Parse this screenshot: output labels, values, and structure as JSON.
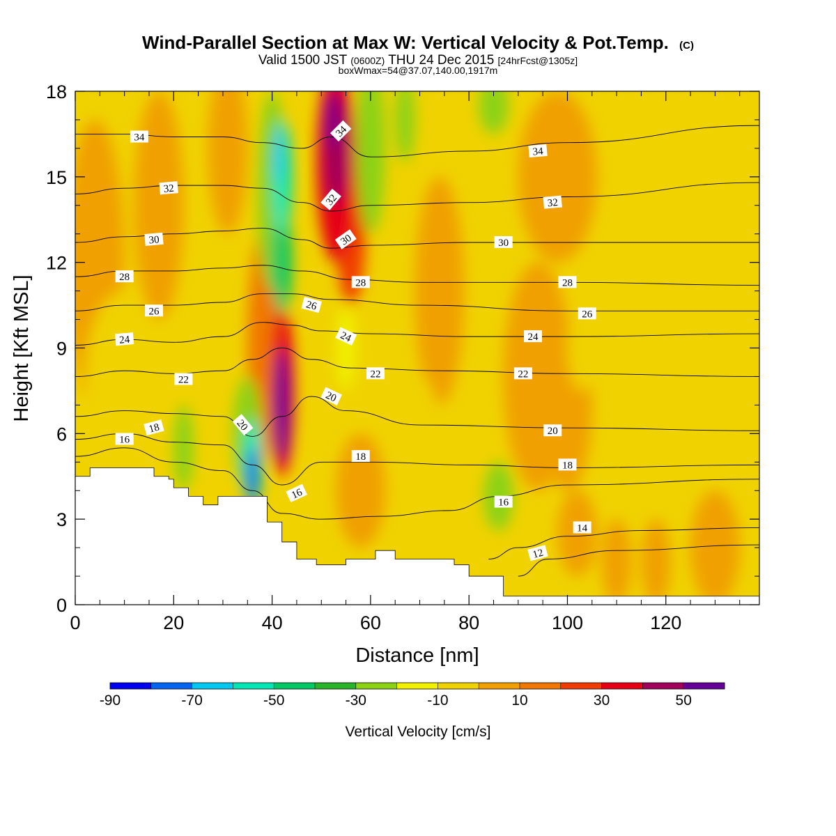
{
  "header": {
    "title_main": "Wind-Parallel Section at Max W: Vertical Velocity & Pot.Temp.",
    "title_mark": "(C)",
    "valid_prefix": "Valid 1500 JST",
    "valid_utc": "(0600Z)",
    "valid_date": "THU 24 Dec 2015",
    "forecast": "[24hrFcst@1305z]",
    "box_info": "boxWmax=54@37.07,140.00,1917m"
  },
  "chart_data": {
    "type": "heatmap",
    "xlabel": "Distance [nm]",
    "ylabel": "Height [Kft MSL]",
    "xlim": [
      0,
      139
    ],
    "ylim": [
      0,
      18
    ],
    "x_ticks": [
      "0",
      "20",
      "40",
      "60",
      "80",
      "100",
      "120"
    ],
    "y_ticks": [
      "0",
      "3",
      "6",
      "9",
      "12",
      "15",
      "18"
    ],
    "grid": false,
    "colorbar": {
      "title": "Vertical Velocity [cm/s]",
      "tick_labels": [
        "-90",
        "-70",
        "-50",
        "-30",
        "-10",
        "10",
        "30",
        "50"
      ],
      "levels": [
        -90,
        -80,
        -70,
        -60,
        -50,
        -40,
        -30,
        -20,
        -10,
        0,
        10,
        20,
        30,
        40,
        50,
        60
      ],
      "colors": [
        "#0000f0",
        "#0064f0",
        "#00c8f0",
        "#00e6b4",
        "#00c864",
        "#28b428",
        "#8cd214",
        "#f0f000",
        "#f0d200",
        "#f0a000",
        "#f07800",
        "#f03c00",
        "#e60014",
        "#a0005a",
        "#640096"
      ]
    },
    "terrain": {
      "distance": [
        0,
        3,
        3,
        16,
        16,
        19,
        19,
        20,
        20,
        23,
        23,
        26,
        26,
        29,
        29,
        39,
        39,
        42,
        42,
        45,
        45,
        49,
        49,
        55,
        55,
        61,
        61,
        65,
        65,
        77,
        77,
        80,
        80,
        87,
        87,
        90,
        90,
        139
      ],
      "height_kft": [
        4.5,
        4.5,
        4.8,
        4.8,
        4.5,
        4.5,
        4.4,
        4.4,
        4.1,
        4.1,
        3.8,
        3.8,
        3.5,
        3.5,
        3.8,
        3.8,
        2.9,
        2.9,
        2.2,
        2.2,
        1.6,
        1.6,
        1.4,
        1.4,
        1.6,
        1.6,
        1.9,
        1.9,
        1.6,
        1.6,
        1.4,
        1.4,
        1.0,
        1.0,
        0.3,
        0.3,
        0.3,
        0.3
      ]
    },
    "w_features": [
      {
        "x": 4,
        "y": 12,
        "rx": 6,
        "ry": 5,
        "w": 5
      },
      {
        "x": 17,
        "y": 14,
        "rx": 5,
        "ry": 4,
        "w": 8
      },
      {
        "x": 31,
        "y": 16,
        "rx": 4,
        "ry": 3,
        "w": 5
      },
      {
        "x": 40,
        "y": 14.5,
        "rx": 3,
        "ry": 3.5,
        "w": -30
      },
      {
        "x": 42,
        "y": 12,
        "rx": 2,
        "ry": 1.8,
        "w": -50
      },
      {
        "x": 42,
        "y": 15,
        "rx": 2,
        "ry": 2,
        "w": -55
      },
      {
        "x": 41.5,
        "y": 15.8,
        "rx": 1,
        "ry": 1,
        "w": -70
      },
      {
        "x": 53,
        "y": 15.5,
        "rx": 4,
        "ry": 3.5,
        "w": 30
      },
      {
        "x": 53,
        "y": 16,
        "rx": 2.5,
        "ry": 2,
        "w": 45
      },
      {
        "x": 52,
        "y": 17,
        "rx": 1,
        "ry": 1,
        "w": 55
      },
      {
        "x": 56,
        "y": 13,
        "rx": 3,
        "ry": 2.5,
        "w": 25
      },
      {
        "x": 60,
        "y": 16,
        "rx": 3,
        "ry": 3,
        "w": -25
      },
      {
        "x": 67,
        "y": 17,
        "rx": 2,
        "ry": 1.5,
        "w": -30
      },
      {
        "x": 85,
        "y": 17.5,
        "rx": 3,
        "ry": 1,
        "w": -25
      },
      {
        "x": 98,
        "y": 15,
        "rx": 8,
        "ry": 3,
        "w": 8
      },
      {
        "x": 74,
        "y": 11,
        "rx": 5,
        "ry": 4,
        "w": 5
      },
      {
        "x": 94,
        "y": 8,
        "rx": 7,
        "ry": 4,
        "w": 6
      },
      {
        "x": 100,
        "y": 7,
        "rx": 5,
        "ry": 3,
        "w": 8
      },
      {
        "x": 38,
        "y": 9,
        "rx": 3,
        "ry": 4,
        "w": 15
      },
      {
        "x": 42,
        "y": 7.5,
        "rx": 2.5,
        "ry": 3,
        "w": 35
      },
      {
        "x": 42,
        "y": 7,
        "rx": 1.5,
        "ry": 2,
        "w": 55
      },
      {
        "x": 35,
        "y": 6,
        "rx": 3,
        "ry": 2,
        "w": -30
      },
      {
        "x": 36,
        "y": 5,
        "rx": 2,
        "ry": 1.5,
        "w": -55
      },
      {
        "x": 36,
        "y": 4.5,
        "rx": 1.2,
        "ry": 1,
        "w": -80
      },
      {
        "x": 22,
        "y": 5.5,
        "rx": 2,
        "ry": 1.5,
        "w": -25
      },
      {
        "x": 55,
        "y": 9,
        "rx": 2,
        "ry": 1.5,
        "w": -20
      },
      {
        "x": 58,
        "y": 4,
        "rx": 5,
        "ry": 2,
        "w": 8
      },
      {
        "x": 86,
        "y": 3.8,
        "rx": 3,
        "ry": 1.2,
        "w": -25
      },
      {
        "x": 102,
        "y": 2.5,
        "rx": 4,
        "ry": 1.5,
        "w": 8
      },
      {
        "x": 110,
        "y": 1.5,
        "rx": 3,
        "ry": 1.5,
        "w": 8
      },
      {
        "x": 118,
        "y": 1.5,
        "rx": 3,
        "ry": 1.5,
        "w": 5
      },
      {
        "x": 130,
        "y": 2,
        "rx": 5,
        "ry": 2,
        "w": 5
      },
      {
        "x": 10,
        "y": 8,
        "rx": 8,
        "ry": 3,
        "w": -10
      },
      {
        "x": 70,
        "y": 6,
        "rx": 4,
        "ry": 2,
        "w": -10
      },
      {
        "x": 103,
        "y": 9,
        "rx": 3,
        "ry": 1.5,
        "w": -10
      }
    ],
    "isentropes": [
      {
        "value": 12,
        "points": [
          [
            90,
            1.0
          ],
          [
            96,
            1.6
          ],
          [
            110,
            1.9
          ],
          [
            139,
            2.1
          ]
        ]
      },
      {
        "value": 14,
        "points": [
          [
            84,
            1.6
          ],
          [
            90,
            2.0
          ],
          [
            100,
            2.4
          ],
          [
            115,
            2.6
          ],
          [
            139,
            2.7
          ]
        ]
      },
      {
        "value": 16,
        "points": [
          [
            0,
            5.2
          ],
          [
            10,
            5.5
          ],
          [
            20,
            5.0
          ],
          [
            30,
            4.7
          ],
          [
            36,
            4.0
          ],
          [
            42,
            3.2
          ],
          [
            50,
            3.0
          ],
          [
            62,
            3.1
          ],
          [
            76,
            3.3
          ],
          [
            86,
            3.8
          ],
          [
            100,
            4.2
          ],
          [
            139,
            4.4
          ]
        ]
      },
      {
        "value": 18,
        "points": [
          [
            0,
            5.8
          ],
          [
            10,
            6.0
          ],
          [
            20,
            5.7
          ],
          [
            30,
            5.6
          ],
          [
            36,
            4.9
          ],
          [
            42,
            4.2
          ],
          [
            50,
            5.0
          ],
          [
            60,
            5.0
          ],
          [
            80,
            4.9
          ],
          [
            100,
            4.8
          ],
          [
            139,
            4.9
          ]
        ]
      },
      {
        "value": 20,
        "points": [
          [
            0,
            6.6
          ],
          [
            10,
            6.8
          ],
          [
            20,
            6.7
          ],
          [
            30,
            6.6
          ],
          [
            36,
            5.9
          ],
          [
            42,
            6.6
          ],
          [
            48,
            7.3
          ],
          [
            55,
            6.8
          ],
          [
            70,
            6.3
          ],
          [
            100,
            6.2
          ],
          [
            139,
            6.1
          ]
        ]
      },
      {
        "value": 22,
        "points": [
          [
            0,
            8.0
          ],
          [
            10,
            8.2
          ],
          [
            20,
            8.1
          ],
          [
            30,
            8.2
          ],
          [
            36,
            8.6
          ],
          [
            42,
            9.0
          ],
          [
            48,
            8.6
          ],
          [
            56,
            8.3
          ],
          [
            75,
            8.2
          ],
          [
            100,
            8.1
          ],
          [
            139,
            8.0
          ]
        ]
      },
      {
        "value": 24,
        "points": [
          [
            0,
            9.1
          ],
          [
            10,
            9.3
          ],
          [
            20,
            9.2
          ],
          [
            30,
            9.4
          ],
          [
            38,
            9.9
          ],
          [
            44,
            9.8
          ],
          [
            50,
            9.6
          ],
          [
            60,
            9.5
          ],
          [
            80,
            9.4
          ],
          [
            100,
            9.4
          ],
          [
            139,
            9.5
          ]
        ]
      },
      {
        "value": 26,
        "points": [
          [
            0,
            10.3
          ],
          [
            10,
            10.5
          ],
          [
            20,
            10.5
          ],
          [
            30,
            10.6
          ],
          [
            38,
            10.9
          ],
          [
            44,
            10.9
          ],
          [
            52,
            10.7
          ],
          [
            70,
            10.5
          ],
          [
            100,
            10.3
          ],
          [
            139,
            10.3
          ]
        ]
      },
      {
        "value": 28,
        "points": [
          [
            0,
            11.5
          ],
          [
            10,
            11.7
          ],
          [
            20,
            11.7
          ],
          [
            30,
            11.8
          ],
          [
            38,
            11.9
          ],
          [
            46,
            11.7
          ],
          [
            56,
            11.4
          ],
          [
            70,
            11.3
          ],
          [
            100,
            11.3
          ],
          [
            139,
            11.2
          ]
        ]
      },
      {
        "value": 30,
        "points": [
          [
            0,
            12.7
          ],
          [
            10,
            12.9
          ],
          [
            20,
            13.0
          ],
          [
            30,
            13.1
          ],
          [
            38,
            13.2
          ],
          [
            46,
            12.8
          ],
          [
            52,
            12.5
          ],
          [
            60,
            12.6
          ],
          [
            80,
            12.7
          ],
          [
            100,
            12.7
          ],
          [
            139,
            12.7
          ]
        ]
      },
      {
        "value": 32,
        "points": [
          [
            0,
            14.4
          ],
          [
            10,
            14.6
          ],
          [
            20,
            14.7
          ],
          [
            30,
            14.7
          ],
          [
            38,
            14.6
          ],
          [
            46,
            14.1
          ],
          [
            52,
            13.8
          ],
          [
            60,
            14.0
          ],
          [
            80,
            14.1
          ],
          [
            100,
            14.3
          ],
          [
            139,
            14.8
          ]
        ]
      },
      {
        "value": 34,
        "points": [
          [
            0,
            16.5
          ],
          [
            10,
            16.5
          ],
          [
            20,
            16.4
          ],
          [
            30,
            16.4
          ],
          [
            38,
            16.2
          ],
          [
            46,
            16.0
          ],
          [
            52,
            16.4
          ],
          [
            60,
            15.7
          ],
          [
            80,
            15.9
          ],
          [
            100,
            16.2
          ],
          [
            139,
            16.8
          ]
        ]
      }
    ],
    "contour_labels": [
      {
        "text": "34",
        "x": 13,
        "y": 16.4,
        "angle": 0
      },
      {
        "text": "34",
        "x": 54,
        "y": 16.6,
        "angle": -45
      },
      {
        "text": "34",
        "x": 94,
        "y": 15.9,
        "angle": -5
      },
      {
        "text": "32",
        "x": 19,
        "y": 14.6,
        "angle": -5
      },
      {
        "text": "32",
        "x": 52,
        "y": 14.2,
        "angle": -50
      },
      {
        "text": "32",
        "x": 97,
        "y": 14.1,
        "angle": -5
      },
      {
        "text": "30",
        "x": 16,
        "y": 12.8,
        "angle": -5
      },
      {
        "text": "30",
        "x": 55,
        "y": 12.8,
        "angle": -35
      },
      {
        "text": "30",
        "x": 87,
        "y": 12.7,
        "angle": 0
      },
      {
        "text": "28",
        "x": 10,
        "y": 11.5,
        "angle": 0
      },
      {
        "text": "28",
        "x": 58,
        "y": 11.3,
        "angle": 0
      },
      {
        "text": "28",
        "x": 100,
        "y": 11.3,
        "angle": 0
      },
      {
        "text": "26",
        "x": 16,
        "y": 10.3,
        "angle": 0
      },
      {
        "text": "26",
        "x": 48,
        "y": 10.5,
        "angle": 15
      },
      {
        "text": "26",
        "x": 104,
        "y": 10.2,
        "angle": 0
      },
      {
        "text": "24",
        "x": 10,
        "y": 9.3,
        "angle": -5
      },
      {
        "text": "24",
        "x": 55,
        "y": 9.4,
        "angle": 25
      },
      {
        "text": "24",
        "x": 93,
        "y": 9.4,
        "angle": 0
      },
      {
        "text": "22",
        "x": 22,
        "y": 7.9,
        "angle": 0
      },
      {
        "text": "22",
        "x": 61,
        "y": 8.1,
        "angle": 0
      },
      {
        "text": "22",
        "x": 91,
        "y": 8.1,
        "angle": 0
      },
      {
        "text": "20",
        "x": 34,
        "y": 6.3,
        "angle": 50
      },
      {
        "text": "20",
        "x": 52,
        "y": 7.3,
        "angle": 25
      },
      {
        "text": "20",
        "x": 97,
        "y": 6.1,
        "angle": 0
      },
      {
        "text": "18",
        "x": 16,
        "y": 6.2,
        "angle": -15
      },
      {
        "text": "18",
        "x": 58,
        "y": 5.2,
        "angle": 0
      },
      {
        "text": "18",
        "x": 100,
        "y": 4.9,
        "angle": 0
      },
      {
        "text": "16",
        "x": 10,
        "y": 5.8,
        "angle": 0
      },
      {
        "text": "16",
        "x": 45,
        "y": 3.9,
        "angle": -25
      },
      {
        "text": "16",
        "x": 87,
        "y": 3.6,
        "angle": 0
      },
      {
        "text": "14",
        "x": 103,
        "y": 2.7,
        "angle": 0
      },
      {
        "text": "12",
        "x": 94,
        "y": 1.8,
        "angle": -15
      }
    ]
  }
}
